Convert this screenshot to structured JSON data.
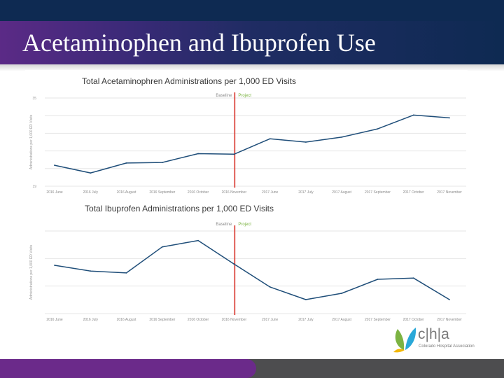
{
  "slide": {
    "title": "Acetaminophen and Ibuprofen Use"
  },
  "logo": {
    "text": "c|h|a",
    "subtext": "Colorado Hospital Association"
  },
  "colors": {
    "line": "#1f4e79",
    "marker": "#d9342b",
    "baseline_label": "#8c8c8c",
    "project_label": "#7cb342"
  },
  "chart_data": [
    {
      "type": "line",
      "title": "Total Acetaminophren Administrations per 1,000 ED Visits",
      "ylabel": "Administrations per 1,000 ED Visits",
      "categories": [
        "2016 June",
        "2016 July",
        "2016 August",
        "2016 September",
        "2016 October",
        "2016 November",
        "2017 June",
        "2017 July",
        "2017 August",
        "2017 September",
        "2017 October",
        "2017 November"
      ],
      "values": [
        22.8,
        21.4,
        23.2,
        23.3,
        24.9,
        24.8,
        27.6,
        27.0,
        27.9,
        29.4,
        31.9,
        31.4
      ],
      "ylim": [
        19,
        35
      ],
      "yticks": [
        "19",
        "",
        "",
        "",
        "",
        "35"
      ],
      "grid": true,
      "annotations": {
        "marker_after": "2016 November",
        "left_label": "Baseline",
        "right_label": "Project"
      }
    },
    {
      "type": "line",
      "title": "Total Ibuprofen Administrations per 1,000 ED Visits",
      "ylabel": "Administrations per 1,000 ED Visits",
      "categories": [
        "2016 June",
        "2016 July",
        "2016 August",
        "2016 September",
        "2016 October",
        "2016 November",
        "2017 June",
        "2017 July",
        "2017 August",
        "2017 September",
        "2017 October",
        "2017 November"
      ],
      "values": [
        19.6,
        18.7,
        18.4,
        22.5,
        23.5,
        19.8,
        16.2,
        14.2,
        15.2,
        17.4,
        17.6,
        14.2
      ],
      "ylim": [
        12,
        25
      ],
      "yticks": [
        "",
        "",
        "",
        ""
      ],
      "grid": true,
      "annotations": {
        "marker_after": "2016 November",
        "left_label": "Baseline",
        "right_label": "Project"
      }
    }
  ]
}
